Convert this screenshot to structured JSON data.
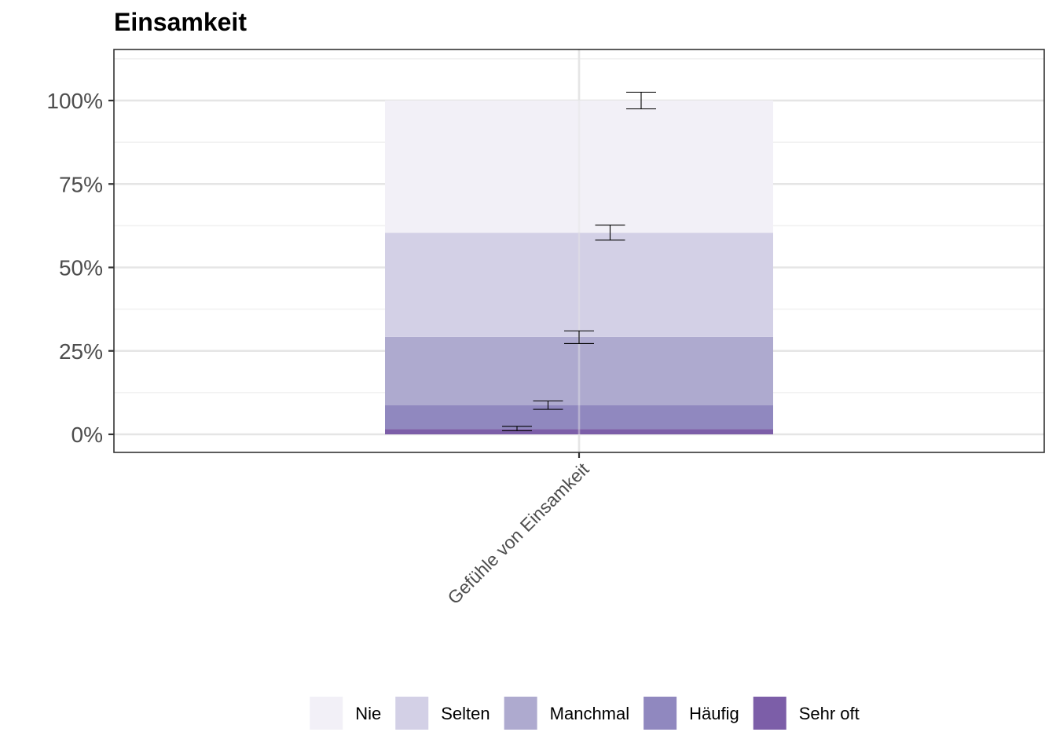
{
  "chart_data": {
    "type": "bar",
    "stacked": true,
    "title": "Einsamkeit",
    "xlabel": "",
    "ylabel": "",
    "categories": [
      "Gefühle von Einsamkeit"
    ],
    "ylim": [
      -0.05,
      1.12
    ],
    "y_ticks": [
      0,
      0.25,
      0.5,
      0.75,
      1.0
    ],
    "y_tick_labels": [
      "0%",
      "25%",
      "50%",
      "75%",
      "100%"
    ],
    "grid": true,
    "legend_position": "bottom",
    "series": [
      {
        "name": "Nie",
        "color": "#f2f0f7",
        "values": [
          0.396
        ],
        "cumulative_error": [
          0.975,
          1.025
        ]
      },
      {
        "name": "Selten",
        "color": "#d3d0e6",
        "values": [
          0.312
        ],
        "cumulative_error": [
          0.582,
          0.627
        ]
      },
      {
        "name": "Manchmal",
        "color": "#aeaacf",
        "values": [
          0.205
        ],
        "cumulative_error": [
          0.272,
          0.31
        ]
      },
      {
        "name": "Häufig",
        "color": "#9088bf",
        "values": [
          0.071
        ],
        "cumulative_error": [
          0.075,
          0.1
        ]
      },
      {
        "name": "Sehr oft",
        "color": "#7c5ea8",
        "values": [
          0.016
        ],
        "cumulative_error": [
          0.011,
          0.024
        ]
      }
    ]
  }
}
